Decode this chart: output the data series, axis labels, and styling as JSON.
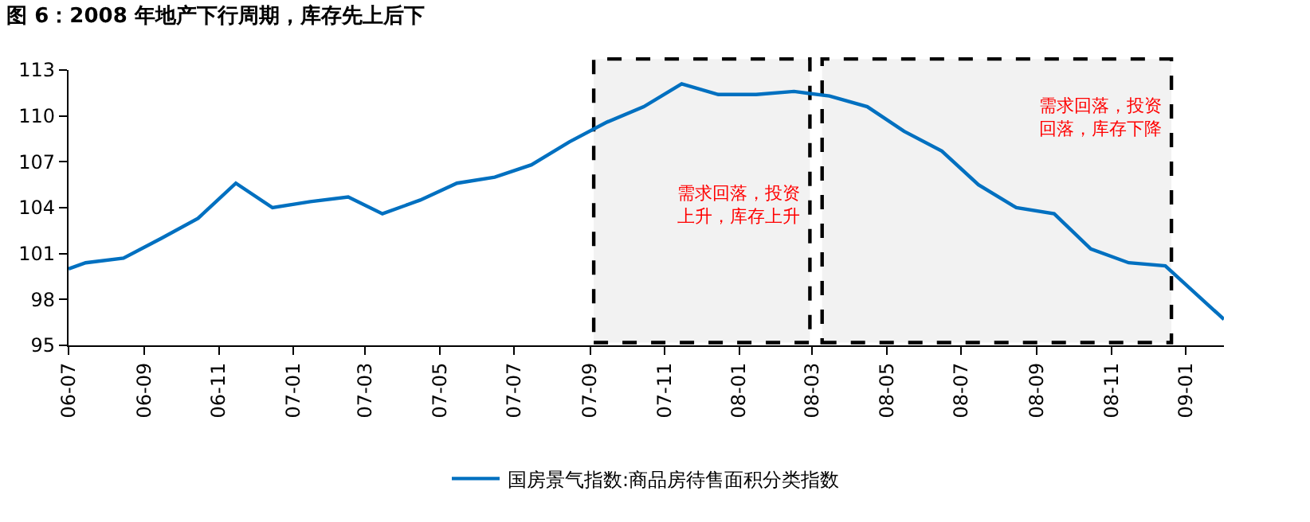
{
  "chart_data": {
    "type": "line",
    "title": "图 6：2008 年地产下行周期，库存先上后下",
    "x": [
      "2006-07-01",
      "2006-07-15",
      "2006-08-15",
      "2006-09-15",
      "2006-10-15",
      "2006-11-15",
      "2006-12-15",
      "2007-01-15",
      "2007-02-15",
      "2007-03-15",
      "2007-04-15",
      "2007-05-15",
      "2007-06-15",
      "2007-07-15",
      "2007-08-15",
      "2007-09-15",
      "2007-10-15",
      "2007-11-15",
      "2007-12-15",
      "2008-01-15",
      "2008-02-15",
      "2008-03-15",
      "2008-04-15",
      "2008-05-15",
      "2008-06-15",
      "2008-07-15",
      "2008-08-15",
      "2008-09-15",
      "2008-10-15",
      "2008-11-15",
      "2008-12-15",
      "2009-02-01"
    ],
    "series": [
      {
        "name": "国房景气指数:商品房待售面积分类指数",
        "color": "#0070c0",
        "values": [
          100.0,
          100.4,
          100.7,
          102.0,
          103.3,
          105.6,
          104.0,
          104.4,
          104.7,
          103.6,
          104.5,
          105.6,
          106.0,
          106.8,
          108.3,
          109.6,
          110.6,
          112.1,
          111.4,
          111.4,
          111.6,
          111.3,
          110.6,
          109.0,
          107.7,
          105.5,
          104.0,
          103.6,
          101.3,
          100.4,
          100.2,
          96.7
        ]
      }
    ],
    "xlim": [
      "2006-07-01",
      "2009-02-01"
    ],
    "xticks": [
      {
        "value": "2006-07",
        "label": "06-07"
      },
      {
        "value": "2006-09",
        "label": "06-09"
      },
      {
        "value": "2006-11",
        "label": "06-11"
      },
      {
        "value": "2007-01",
        "label": "07-01"
      },
      {
        "value": "2007-03",
        "label": "07-03"
      },
      {
        "value": "2007-05",
        "label": "07-05"
      },
      {
        "value": "2007-07",
        "label": "07-07"
      },
      {
        "value": "2007-09",
        "label": "07-09"
      },
      {
        "value": "2007-11",
        "label": "07-11"
      },
      {
        "value": "2008-01",
        "label": "08-01"
      },
      {
        "value": "2008-03",
        "label": "08-03"
      },
      {
        "value": "2008-05",
        "label": "08-05"
      },
      {
        "value": "2008-07",
        "label": "08-07"
      },
      {
        "value": "2008-09",
        "label": "08-09"
      },
      {
        "value": "2008-11",
        "label": "08-11"
      },
      {
        "value": "2009-01",
        "label": "09-01"
      }
    ],
    "ylim": [
      95,
      113
    ],
    "yticks": [
      95,
      98,
      101,
      104,
      107,
      110,
      113
    ],
    "bands": [
      {
        "axis": "x",
        "from": "2007-09-04",
        "to": "2008-02-28",
        "label": "需求回落，投资上升，库存上升",
        "color": "#000000"
      },
      {
        "axis": "x",
        "from": "2008-03-09",
        "to": "2008-12-20",
        "label": "需求回落，投资回落，库存下降",
        "color": "#000000"
      }
    ],
    "legend": "bottom",
    "marker": "none",
    "line_style": "solid"
  }
}
